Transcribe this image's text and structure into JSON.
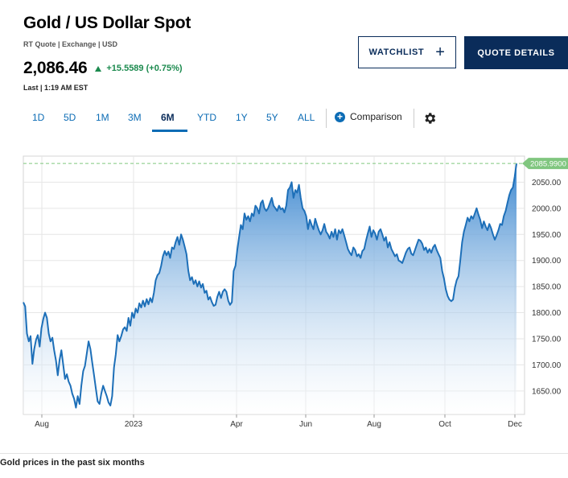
{
  "header": {
    "title": "Gold / US Dollar Spot",
    "subinfo": "RT Quote | Exchange | USD",
    "price": "2,086.46",
    "change": "+15.5589 (+0.75%)",
    "last": "Last | 1:19 AM EST"
  },
  "buttons": {
    "watchlist": "WATCHLIST",
    "watchlist_plus": "+",
    "quote_details": "QUOTE DETAILS"
  },
  "ranges": {
    "d1": "1D",
    "d5": "5D",
    "m1": "1M",
    "m3": "3M",
    "m6": "6M",
    "ytd": "YTD",
    "y1": "1Y",
    "y5": "5Y",
    "all": "ALL"
  },
  "toolbar": {
    "comparison_label": "Comparison",
    "comparison_icon": "+",
    "settings_icon": "gear-icon"
  },
  "caption": "Gold prices in the past six months",
  "colors": {
    "line": "#1d6fb8",
    "area_top": "#3a86cf",
    "current_tag": "#80c67f",
    "up": "#1b8a4e",
    "navy": "#0a2c5a"
  },
  "chart_data": {
    "type": "area",
    "x_ticks": [
      "Aug",
      "2023",
      "Apr",
      "Jun",
      "Aug",
      "Oct",
      "Dec"
    ],
    "y_ticks": [
      "1650.00",
      "1700.00",
      "1750.00",
      "1800.00",
      "1850.00",
      "1900.00",
      "1950.00",
      "2000.00",
      "2050.00"
    ],
    "ylim": [
      1605,
      2100
    ],
    "current_value_label": "2085.9900",
    "current_value": 2085.99,
    "grid": true,
    "series": [
      {
        "values": [
          1820,
          1812,
          1760,
          1745,
          1755,
          1702,
          1730,
          1748,
          1757,
          1735,
          1770,
          1788,
          1800,
          1790,
          1760,
          1745,
          1752,
          1728,
          1708,
          1680,
          1710,
          1728,
          1700,
          1673,
          1682,
          1668,
          1660,
          1645,
          1635,
          1618,
          1640,
          1625,
          1660,
          1688,
          1698,
          1722,
          1745,
          1730,
          1705,
          1680,
          1655,
          1630,
          1625,
          1645,
          1660,
          1650,
          1640,
          1628,
          1622,
          1640,
          1695,
          1720,
          1757,
          1745,
          1755,
          1768,
          1772,
          1765,
          1790,
          1775,
          1800,
          1790,
          1808,
          1800,
          1818,
          1810,
          1823,
          1812,
          1826,
          1816,
          1828,
          1820,
          1838,
          1862,
          1872,
          1876,
          1890,
          1908,
          1918,
          1910,
          1917,
          1905,
          1925,
          1922,
          1935,
          1945,
          1930,
          1950,
          1940,
          1926,
          1912,
          1880,
          1862,
          1868,
          1855,
          1862,
          1850,
          1860,
          1848,
          1855,
          1838,
          1842,
          1825,
          1830,
          1820,
          1813,
          1815,
          1830,
          1840,
          1828,
          1840,
          1845,
          1840,
          1823,
          1815,
          1820,
          1880,
          1890,
          1920,
          1945,
          1968,
          1960,
          1990,
          1978,
          1985,
          1975,
          1990,
          1985,
          2005,
          2000,
          1990,
          2010,
          2015,
          2000,
          1995,
          2000,
          2010,
          2020,
          2005,
          2000,
          1995,
          2005,
          1998,
          2000,
          1992,
          2005,
          2035,
          2040,
          2050,
          2020,
          2035,
          2030,
          2045,
          2020,
          2000,
          1995,
          1985,
          1960,
          1978,
          1968,
          1960,
          1980,
          1968,
          1958,
          1950,
          1958,
          1970,
          1955,
          1950,
          1942,
          1955,
          1945,
          1960,
          1940,
          1958,
          1952,
          1960,
          1948,
          1935,
          1922,
          1915,
          1910,
          1925,
          1920,
          1908,
          1912,
          1905,
          1918,
          1922,
          1938,
          1952,
          1965,
          1945,
          1958,
          1952,
          1940,
          1955,
          1960,
          1950,
          1938,
          1945,
          1925,
          1935,
          1922,
          1915,
          1908,
          1912,
          1900,
          1898,
          1895,
          1905,
          1915,
          1922,
          1925,
          1913,
          1910,
          1920,
          1930,
          1940,
          1938,
          1932,
          1920,
          1925,
          1915,
          1922,
          1915,
          1925,
          1930,
          1920,
          1912,
          1905,
          1880,
          1865,
          1845,
          1832,
          1825,
          1822,
          1825,
          1848,
          1862,
          1870,
          1900,
          1935,
          1955,
          1968,
          1982,
          1975,
          1985,
          1980,
          1990,
          2000,
          1988,
          1978,
          1962,
          1975,
          1965,
          1958,
          1970,
          1962,
          1950,
          1940,
          1948,
          1958,
          1970,
          1968,
          1985,
          1995,
          2010,
          2025,
          2035,
          2040,
          2060,
          2086
        ]
      }
    ]
  }
}
